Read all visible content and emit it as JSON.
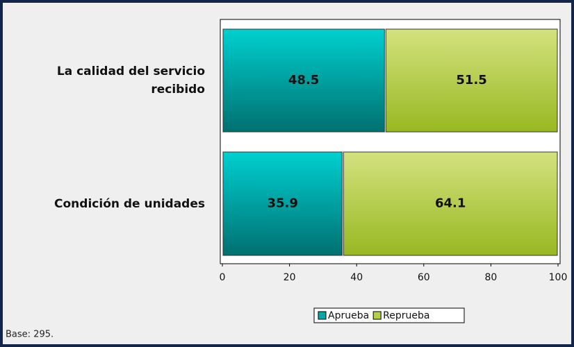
{
  "chart_data": {
    "type": "stacked-bar-horizontal",
    "categories": [
      "La calidad del servicio recibido",
      "Condición de unidades"
    ],
    "series": [
      {
        "name": "Aprueba",
        "color": "#00a8a8",
        "values": [
          48.5,
          35.9
        ]
      },
      {
        "name": "Reprueba",
        "color": "#b4cf4a",
        "values": [
          51.5,
          64.1
        ]
      }
    ],
    "xlim": [
      0,
      100
    ],
    "xticks": [
      0,
      20,
      40,
      60,
      80,
      100
    ],
    "legend": "bottom",
    "note": "Base: 295."
  }
}
